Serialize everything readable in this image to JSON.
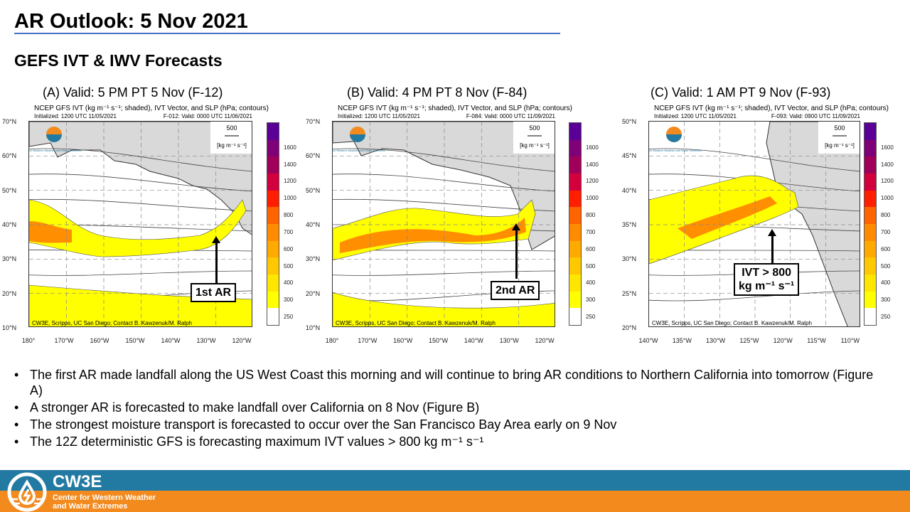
{
  "title": "AR Outlook: 5 Nov 2021",
  "subtitle": "GEFS IVT & IWV Forecasts",
  "colors": {
    "accent": "#4472c4",
    "footer_blue": "#227aa3",
    "footer_orange": "#f28a1e"
  },
  "colorbar": {
    "levels": [
      "250",
      "300",
      "400",
      "500",
      "600",
      "700",
      "800",
      "1000",
      "1200",
      "1400",
      "1600"
    ],
    "colors": [
      "#ffffff",
      "#ffff00",
      "#ffe600",
      "#ffc800",
      "#ffaa00",
      "#ff8c00",
      "#ff6400",
      "#ff1e00",
      "#d2003c",
      "#a0005a",
      "#800078",
      "#5a0096"
    ]
  },
  "panels": [
    {
      "label": "(A) Valid: 5 PM PT 5 Nov (F-12)",
      "header": "NCEP GFS IVT (kg m⁻¹ s⁻¹; shaded), IVT Vector, and SLP (hPa; contours)",
      "init": "Initialized: 1200 UTC 11/05/2021",
      "valid": "F-012: Valid: 0000 UTC 11/06/2021",
      "lats": [
        "70°N",
        "60°N",
        "50°N",
        "40°N",
        "30°N",
        "20°N",
        "10°N"
      ],
      "lons": [
        "180°",
        "170°W",
        "160°W",
        "150°W",
        "140°W",
        "130°W",
        "120°W"
      ],
      "credit": "CW3E, Scripps, UC San Diego; Contact B. Kawzenuk/M. Ralph",
      "vector_ref": "500",
      "vector_unit": "[kg m⁻¹ s⁻¹]",
      "callout": "1st AR"
    },
    {
      "label": "(B) Valid: 4 PM PT 8 Nov (F-84)",
      "header": "NCEP GFS IVT (kg m⁻¹ s⁻¹; shaded), IVT Vector, and SLP (hPa; contours)",
      "init": "Initialized: 1200 UTC 11/05/2021",
      "valid": "F-084: Valid: 0000 UTC 11/09/2021",
      "lats": [
        "70°N",
        "60°N",
        "50°N",
        "40°N",
        "30°N",
        "20°N",
        "10°N"
      ],
      "lons": [
        "180°",
        "170°W",
        "160°W",
        "150°W",
        "140°W",
        "130°W",
        "120°W"
      ],
      "credit": "CW3E, Scripps, UC San Diego; Contact B. Kawzenuk/M. Ralph",
      "vector_ref": "500",
      "vector_unit": "[kg m⁻¹ s⁻¹]",
      "callout": "2nd AR"
    },
    {
      "label": "(C) Valid: 1 AM PT 9 Nov (F-93)",
      "header": "NCEP GFS IVT (kg m⁻¹ s⁻¹; shaded), IVT Vector, and SLP (hPa; contours)",
      "init": "Initialized: 1200 UTC 11/05/2021",
      "valid": "F-093: Valid: 0900 UTC 11/09/2021",
      "lats": [
        "50°N",
        "45°N",
        "40°N",
        "35°N",
        "30°N",
        "25°N",
        "20°N"
      ],
      "lons": [
        "140°W",
        "135°W",
        "130°W",
        "125°W",
        "120°W",
        "115°W",
        "110°W"
      ],
      "credit": "CW3E, Scripps, UC San Diego; Contact B. Kawzenuk/M. Ralph",
      "vector_ref": "500",
      "vector_unit": "[kg m⁻¹ s⁻¹]",
      "callout": "IVT > 800\nkg m⁻¹ s⁻¹"
    }
  ],
  "logo_text": "Center for Western Weather and Water Extremes",
  "bullets": [
    "The first AR made landfall along the US West Coast this morning and will continue to bring AR conditions to Northern California into tomorrow (Figure A)",
    "A stronger AR is forecasted to make landfall over California on 8 Nov (Figure B)",
    "The strongest moisture transport is forecasted to occur over the San Francisco Bay Area early on 9 Nov",
    "The 12Z deterministic GFS is forecasting maximum  IVT values > 800 kg m⁻¹ s⁻¹"
  ],
  "footer": {
    "name": "CW3E",
    "line1": "Center for Western Weather",
    "line2": "and Water Extremes"
  }
}
